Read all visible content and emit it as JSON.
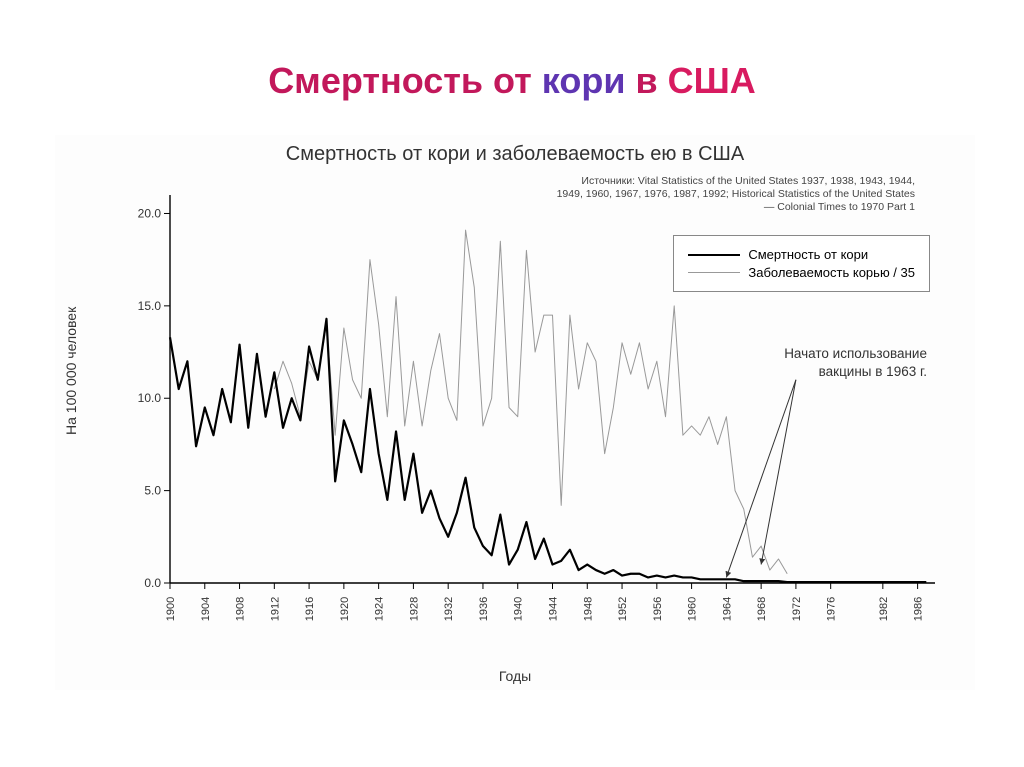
{
  "page_title": {
    "w1": "Смертность",
    "w2": "от",
    "w3": "кори",
    "w4": "в",
    "w5": "США"
  },
  "chart": {
    "type": "line",
    "title": "Смертность от кори и заболеваемость ею в США",
    "sources": "Источники: Vital Statistics of the United States 1937, 1938, 1943, 1944, 1949, 1960, 1967, 1976, 1987, 1992; Historical Statistics of the United States — Colonial Times to 1970 Part 1",
    "ylabel": "На 100 000 человек",
    "xlabel": "Годы",
    "ylim": [
      0,
      21
    ],
    "xlim": [
      1900,
      1988
    ],
    "yticks": [
      0.0,
      5.0,
      10.0,
      15.0,
      20.0
    ],
    "xticks": [
      1900,
      1904,
      1908,
      1912,
      1916,
      1920,
      1924,
      1928,
      1932,
      1936,
      1940,
      1944,
      1948,
      1952,
      1956,
      1960,
      1964,
      1968,
      1972,
      1976,
      1982,
      1986
    ],
    "background_color": "#ffffff",
    "axis_color": "#000000",
    "legend": {
      "position": "top-right",
      "items": [
        {
          "label": "Смертность от кори",
          "color": "#000000",
          "width": 2.2
        },
        {
          "label": "Заболеваемость корью / 35",
          "color": "#999999",
          "width": 1
        }
      ]
    },
    "annotation": {
      "text_l1": "Начато использование",
      "text_l2": "вакцины в 1963 г.",
      "arrow_from_x": 1972,
      "arrow_from_y": 11,
      "arrow1_to_x": 1964,
      "arrow1_to_y": 0.3,
      "arrow2_to_x": 1968,
      "arrow2_to_y": 1.0
    },
    "series": {
      "mortality": {
        "color": "#000000",
        "width": 2.2,
        "x": [
          1900,
          1901,
          1902,
          1903,
          1904,
          1905,
          1906,
          1907,
          1908,
          1909,
          1910,
          1911,
          1912,
          1913,
          1914,
          1915,
          1916,
          1917,
          1918,
          1919,
          1920,
          1921,
          1922,
          1923,
          1924,
          1925,
          1926,
          1927,
          1928,
          1929,
          1930,
          1931,
          1932,
          1933,
          1934,
          1935,
          1936,
          1937,
          1938,
          1939,
          1940,
          1941,
          1942,
          1943,
          1944,
          1945,
          1946,
          1947,
          1948,
          1949,
          1950,
          1951,
          1952,
          1953,
          1954,
          1955,
          1956,
          1957,
          1958,
          1959,
          1960,
          1961,
          1962,
          1963,
          1964,
          1965,
          1966,
          1967,
          1968,
          1969,
          1970,
          1971,
          1972,
          1973,
          1974,
          1975,
          1976,
          1977,
          1978,
          1979,
          1980,
          1981,
          1982,
          1983,
          1984,
          1985,
          1986,
          1987
        ],
        "y": [
          13.3,
          10.5,
          12.0,
          7.4,
          9.5,
          8.0,
          10.5,
          8.7,
          12.9,
          8.4,
          12.4,
          9.0,
          11.4,
          8.4,
          10.0,
          8.8,
          12.8,
          11.0,
          14.3,
          5.5,
          8.8,
          7.5,
          6.0,
          10.5,
          7.0,
          4.5,
          8.2,
          4.5,
          7.0,
          3.8,
          5.0,
          3.5,
          2.5,
          3.8,
          5.7,
          3.0,
          2.0,
          1.5,
          3.7,
          1.0,
          1.8,
          3.3,
          1.3,
          2.4,
          1.0,
          1.2,
          1.8,
          0.7,
          1.0,
          0.7,
          0.5,
          0.7,
          0.4,
          0.5,
          0.5,
          0.3,
          0.4,
          0.3,
          0.4,
          0.3,
          0.3,
          0.2,
          0.2,
          0.2,
          0.2,
          0.2,
          0.1,
          0.1,
          0.1,
          0.1,
          0.1,
          0.05,
          0.05,
          0.05,
          0.05,
          0.05,
          0.05,
          0.05,
          0.05,
          0.05,
          0.05,
          0.05,
          0.05,
          0.05,
          0.05,
          0.05,
          0.05,
          0.05
        ]
      },
      "incidence": {
        "color": "#999999",
        "width": 1.0,
        "x": [
          1912,
          1913,
          1914,
          1915,
          1916,
          1917,
          1918,
          1919,
          1920,
          1921,
          1922,
          1923,
          1924,
          1925,
          1926,
          1927,
          1928,
          1929,
          1930,
          1931,
          1932,
          1933,
          1934,
          1935,
          1936,
          1937,
          1938,
          1939,
          1940,
          1941,
          1942,
          1943,
          1944,
          1945,
          1946,
          1947,
          1948,
          1949,
          1950,
          1951,
          1952,
          1953,
          1954,
          1955,
          1956,
          1957,
          1958,
          1959,
          1960,
          1961,
          1962,
          1963,
          1964,
          1965,
          1966,
          1967,
          1968,
          1969,
          1970,
          1971
        ],
        "y": [
          10.5,
          12.0,
          10.8,
          9.0,
          12.0,
          11.0,
          14.0,
          8.0,
          13.8,
          11.0,
          10.0,
          17.5,
          14.0,
          9.0,
          15.5,
          8.5,
          12.0,
          8.5,
          11.5,
          13.5,
          10.0,
          8.8,
          19.1,
          16.0,
          8.5,
          10.0,
          18.5,
          9.5,
          9.0,
          18.0,
          12.5,
          14.5,
          14.5,
          4.2,
          14.5,
          10.5,
          13.0,
          12.0,
          7.0,
          9.5,
          13.0,
          11.3,
          13.0,
          10.5,
          12.0,
          9.0,
          15.0,
          8.0,
          8.5,
          8.0,
          9.0,
          7.5,
          9.0,
          5.0,
          4.0,
          1.4,
          2.0,
          0.7,
          1.3,
          0.5
        ]
      }
    }
  }
}
